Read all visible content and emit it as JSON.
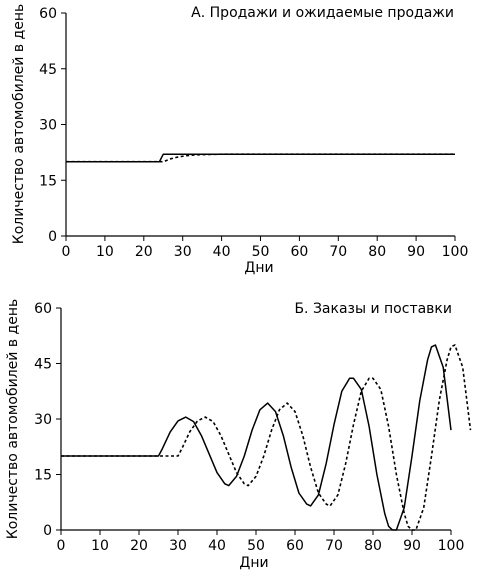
{
  "chart_data": [
    {
      "type": "line",
      "title": "А. Продажи и ожидаемые продажи",
      "xlabel": "Дни",
      "ylabel": "Количество автомобилей в день",
      "xlim": [
        0,
        100
      ],
      "ylim": [
        0,
        60
      ],
      "xticks": [
        0,
        10,
        20,
        30,
        40,
        50,
        60,
        70,
        80,
        90,
        100
      ],
      "yticks": [
        0,
        15,
        30,
        45,
        60
      ],
      "grid": false,
      "series": [
        {
          "style": "solid",
          "x": [
            0,
            24,
            25,
            100
          ],
          "y": [
            20,
            20,
            22,
            22
          ]
        },
        {
          "style": "dashed",
          "x": [
            0,
            25,
            27,
            29,
            31,
            33,
            35,
            40,
            100
          ],
          "y": [
            20,
            20,
            20.8,
            21.3,
            21.6,
            21.8,
            21.9,
            22,
            22
          ]
        }
      ]
    },
    {
      "type": "line",
      "title": "Б. Заказы и поставки",
      "xlabel": "Дни",
      "ylabel": "Количество автомобилей в день",
      "xlim": [
        0,
        100
      ],
      "ylim": [
        0,
        60
      ],
      "xticks": [
        0,
        10,
        20,
        30,
        40,
        50,
        60,
        70,
        80,
        90,
        100
      ],
      "yticks": [
        0,
        15,
        30,
        45,
        60
      ],
      "grid": false,
      "series": [
        {
          "style": "solid",
          "x": [
            0,
            25,
            26,
            28,
            30,
            32,
            34,
            36,
            38,
            40,
            42,
            43,
            45,
            47,
            49,
            51,
            53,
            55,
            57,
            59,
            61,
            63,
            64,
            66,
            68,
            70,
            72,
            74,
            75,
            77,
            79,
            81,
            83,
            84,
            85,
            86,
            88,
            90,
            92,
            94,
            95,
            96,
            98,
            100
          ],
          "y": [
            20,
            20,
            22,
            26.5,
            29.5,
            30.5,
            29.3,
            25.5,
            20.5,
            15.5,
            12.5,
            12,
            14.5,
            20,
            27,
            32.5,
            34.3,
            32,
            25.5,
            17,
            10,
            7,
            6.5,
            9.5,
            18,
            28.5,
            37.5,
            41,
            41,
            38,
            28,
            15,
            4.5,
            1,
            0,
            0,
            6,
            20,
            35,
            46,
            49.5,
            50,
            44,
            27
          ]
        },
        {
          "style": "dashed",
          "x": [
            0,
            30,
            31,
            33,
            35,
            37,
            39,
            41,
            43,
            45,
            47,
            48,
            50,
            52,
            54,
            56,
            58,
            60,
            62,
            64,
            66,
            68,
            69,
            71,
            73,
            75,
            77,
            79,
            80,
            82,
            84,
            86,
            88,
            89,
            90,
            91,
            93,
            95,
            97,
            99,
            100,
            101,
            103,
            105
          ],
          "y": [
            20,
            20,
            22,
            26.5,
            29.5,
            30.5,
            29.3,
            25.5,
            20.5,
            15.5,
            12.5,
            12,
            14.5,
            20,
            27,
            32.5,
            34.3,
            32,
            25.5,
            17,
            10,
            7,
            6.5,
            9.5,
            18,
            28.5,
            37.5,
            41,
            41,
            38,
            28,
            15,
            4.5,
            1,
            0,
            0,
            6,
            20,
            35,
            46,
            49.5,
            50,
            44,
            27
          ]
        }
      ]
    }
  ]
}
